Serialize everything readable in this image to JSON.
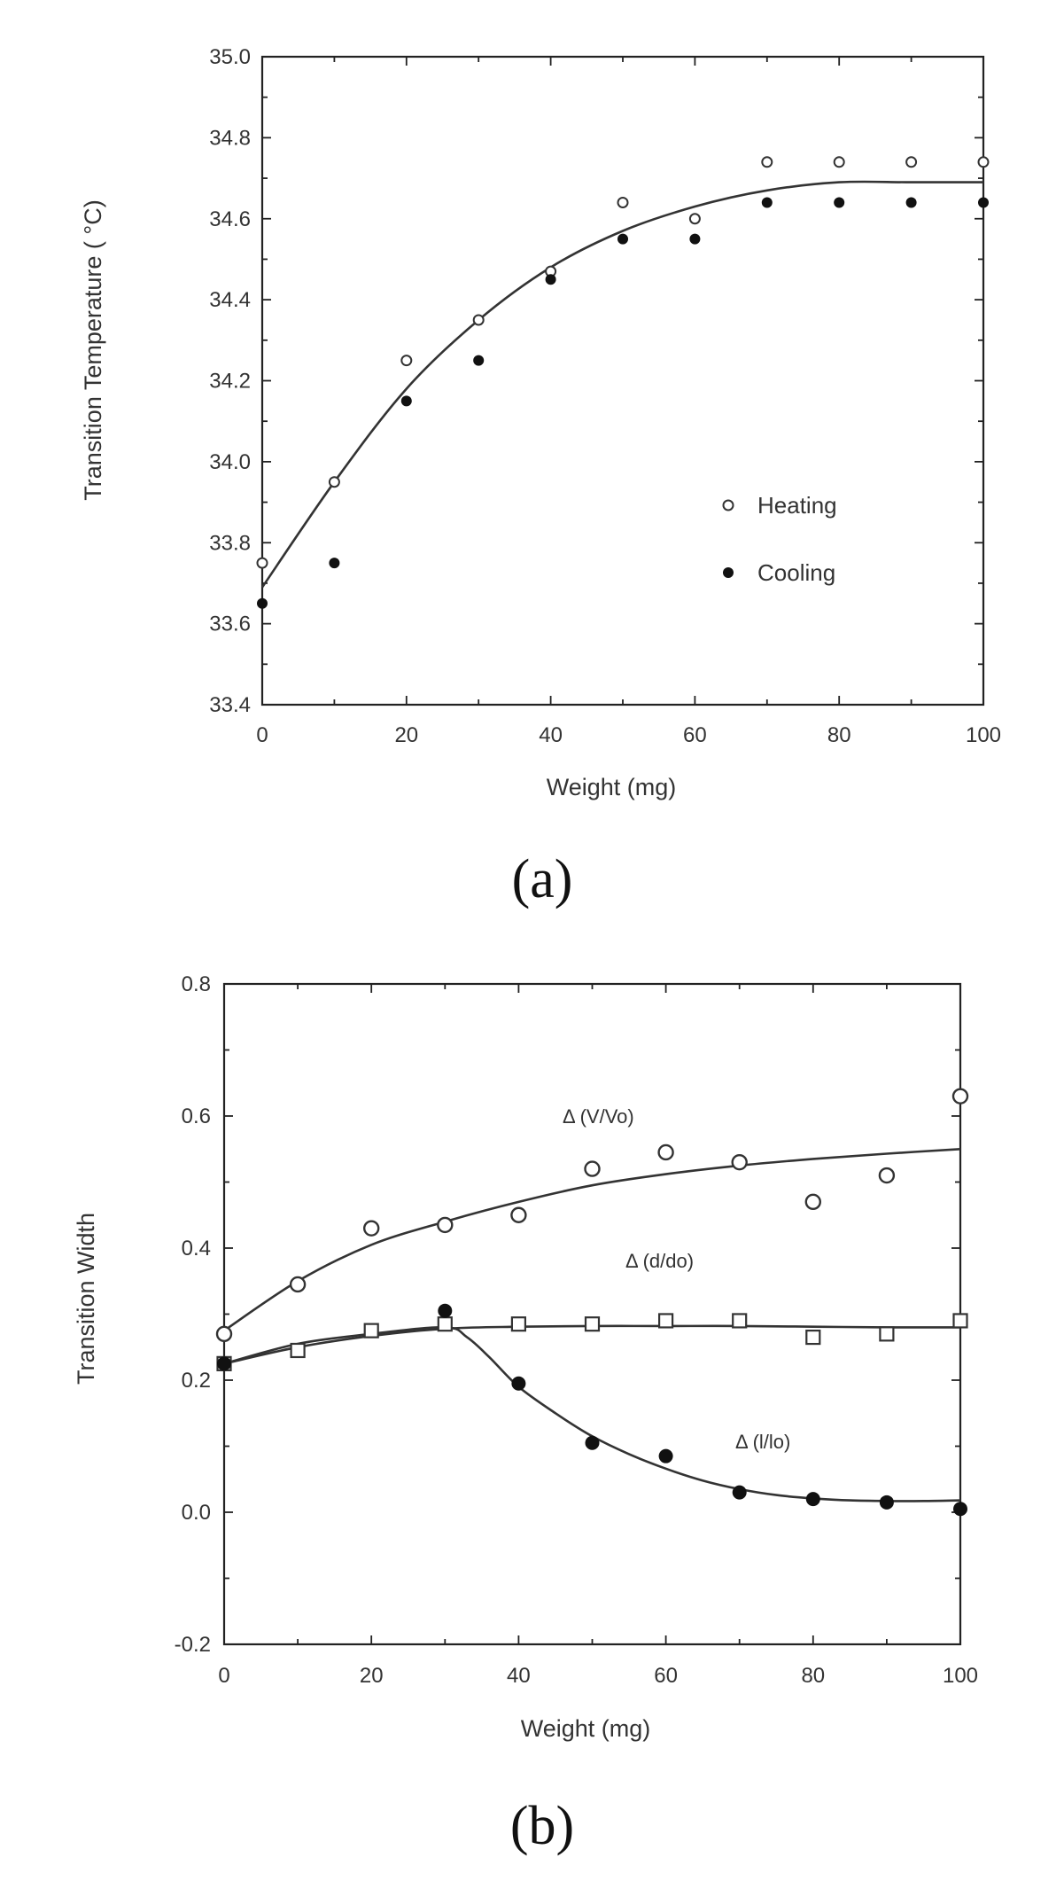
{
  "chart_data": [
    {
      "type": "scatter",
      "panel_label": "(a)",
      "xlabel": "Weight (mg)",
      "ylabel": "Transition Temperature ( °C)",
      "xlim": [
        0,
        100
      ],
      "ylim": [
        33.4,
        35.0
      ],
      "x_ticks": [
        "0",
        "20",
        "40",
        "60",
        "80",
        "100"
      ],
      "y_ticks": [
        "33.4",
        "33.6",
        "33.8",
        "34.0",
        "34.2",
        "34.4",
        "34.6",
        "34.8",
        "35.0"
      ],
      "legend": {
        "position": "right-middle",
        "entries": [
          "Heating",
          "Cooling"
        ]
      },
      "series": [
        {
          "name": "Heating",
          "marker": "open-circle",
          "x": [
            0,
            10,
            20,
            30,
            40,
            50,
            60,
            70,
            80,
            90,
            100
          ],
          "y": [
            33.75,
            33.95,
            34.25,
            34.35,
            34.47,
            34.64,
            34.6,
            34.74,
            34.74,
            34.74,
            34.74
          ]
        },
        {
          "name": "Cooling",
          "marker": "filled-circle",
          "x": [
            0,
            10,
            20,
            30,
            40,
            50,
            60,
            70,
            80,
            90,
            100
          ],
          "y": [
            33.65,
            33.75,
            34.15,
            34.25,
            34.45,
            34.55,
            34.55,
            34.64,
            34.64,
            34.64,
            34.64
          ]
        }
      ],
      "fit_curves": [
        {
          "name": "fit",
          "x": [
            0,
            10,
            20,
            30,
            40,
            50,
            60,
            70,
            80,
            90,
            100
          ],
          "y": [
            33.69,
            33.95,
            34.18,
            34.35,
            34.48,
            34.57,
            34.63,
            34.67,
            34.69,
            34.69,
            34.69
          ]
        }
      ]
    },
    {
      "type": "scatter",
      "panel_label": "(b)",
      "xlabel": "Weight (mg)",
      "ylabel": "Transition Width",
      "xlim": [
        0,
        100
      ],
      "ylim": [
        -0.2,
        0.8
      ],
      "x_ticks": [
        "0",
        "20",
        "40",
        "60",
        "80",
        "100"
      ],
      "y_ticks": [
        "-0.2",
        "0.0",
        "0.2",
        "0.4",
        "0.6",
        "0.8"
      ],
      "series": [
        {
          "name": "Δ (V/Vo)",
          "marker": "open-circle",
          "x": [
            0,
            10,
            20,
            30,
            40,
            50,
            60,
            70,
            80,
            90,
            100
          ],
          "y": [
            0.27,
            0.345,
            0.43,
            0.435,
            0.45,
            0.52,
            0.545,
            0.53,
            0.47,
            0.51,
            0.63
          ]
        },
        {
          "name": "Δ (d/do)",
          "marker": "open-square",
          "x": [
            0,
            10,
            20,
            30,
            40,
            50,
            60,
            70,
            80,
            90,
            100
          ],
          "y": [
            0.225,
            0.245,
            0.275,
            0.285,
            0.285,
            0.285,
            0.29,
            0.29,
            0.265,
            0.27,
            0.29
          ]
        },
        {
          "name": "Δ (l/lo)",
          "marker": "filled-circle",
          "x": [
            0,
            30,
            40,
            50,
            60,
            70,
            80,
            90,
            100
          ],
          "y": [
            0.225,
            0.305,
            0.195,
            0.105,
            0.085,
            0.03,
            0.02,
            0.015,
            0.005
          ]
        }
      ],
      "fit_curves": [
        {
          "name": "Δ (V/Vo) fit",
          "x": [
            0,
            10,
            20,
            30,
            40,
            50,
            60,
            70,
            80,
            90,
            100
          ],
          "y": [
            0.275,
            0.35,
            0.405,
            0.44,
            0.47,
            0.495,
            0.512,
            0.525,
            0.535,
            0.543,
            0.55
          ]
        },
        {
          "name": "Δ (d/do) fit",
          "x": [
            0,
            10,
            20,
            30,
            40,
            50,
            60,
            70,
            80,
            90,
            100
          ],
          "y": [
            0.225,
            0.25,
            0.267,
            0.278,
            0.281,
            0.282,
            0.282,
            0.282,
            0.281,
            0.28,
            0.28
          ]
        },
        {
          "name": "Δ (l/lo) fit",
          "x": [
            0,
            10,
            20,
            30,
            33,
            36,
            40,
            45,
            50,
            55,
            60,
            65,
            70,
            75,
            80,
            85,
            90,
            95,
            100
          ],
          "y": [
            0.225,
            0.255,
            0.27,
            0.28,
            0.265,
            0.235,
            0.19,
            0.15,
            0.115,
            0.088,
            0.066,
            0.048,
            0.035,
            0.026,
            0.021,
            0.018,
            0.017,
            0.017,
            0.018
          ]
        }
      ],
      "annotations": [
        "Δ  (V/Vo)",
        "Δ  (d/do)",
        "Δ  (l/lo)"
      ]
    }
  ]
}
